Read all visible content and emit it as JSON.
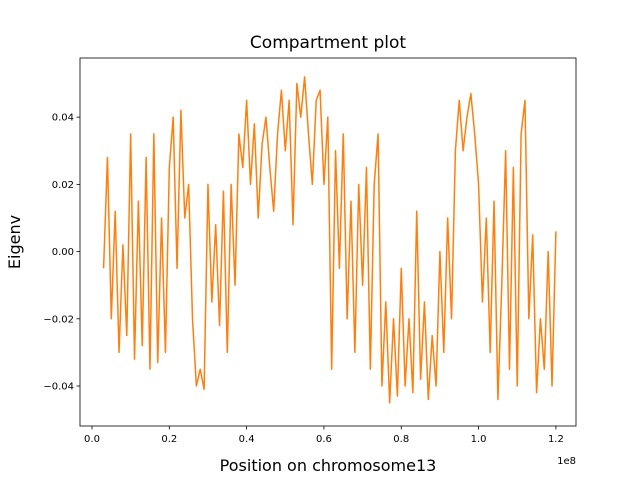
{
  "chart_data": {
    "type": "line",
    "title": "Compartment plot",
    "x_label": "Position on chromosome13",
    "y_label": "Eigenv",
    "x_offset_label": "1e8",
    "x": [
      0.03,
      0.04,
      0.05,
      0.06,
      0.07,
      0.08,
      0.09,
      0.1,
      0.11,
      0.12,
      0.13,
      0.14,
      0.15,
      0.16,
      0.17,
      0.18,
      0.19,
      0.2,
      0.21,
      0.22,
      0.23,
      0.24,
      0.25,
      0.26,
      0.27,
      0.28,
      0.29,
      0.3,
      0.31,
      0.32,
      0.33,
      0.34,
      0.35,
      0.36,
      0.37,
      0.38,
      0.39,
      0.4,
      0.41,
      0.42,
      0.43,
      0.44,
      0.45,
      0.46,
      0.47,
      0.48,
      0.49,
      0.5,
      0.51,
      0.52,
      0.53,
      0.54,
      0.55,
      0.56,
      0.57,
      0.58,
      0.59,
      0.6,
      0.61,
      0.62,
      0.63,
      0.64,
      0.65,
      0.66,
      0.67,
      0.68,
      0.69,
      0.7,
      0.71,
      0.72,
      0.73,
      0.74,
      0.75,
      0.76,
      0.77,
      0.78,
      0.79,
      0.8,
      0.81,
      0.82,
      0.83,
      0.84,
      0.85,
      0.86,
      0.87,
      0.88,
      0.89,
      0.9,
      0.91,
      0.92,
      0.93,
      0.94,
      0.95,
      0.96,
      0.97,
      0.98,
      0.99,
      1.0,
      1.01,
      1.02,
      1.03,
      1.04,
      1.05,
      1.06,
      1.07,
      1.08,
      1.09,
      1.1,
      1.11,
      1.12,
      1.13,
      1.14,
      1.15,
      1.16,
      1.17,
      1.18,
      1.19,
      1.2
    ],
    "series": [
      {
        "color": "#ff7f0e",
        "values": [
          -0.005,
          0.028,
          -0.02,
          0.012,
          -0.03,
          0.002,
          -0.025,
          0.035,
          -0.032,
          0.015,
          -0.028,
          0.028,
          -0.035,
          0.035,
          -0.033,
          0.01,
          -0.03,
          0.025,
          0.04,
          -0.005,
          0.042,
          0.01,
          0.02,
          -0.02,
          -0.04,
          -0.035,
          -0.041,
          0.02,
          -0.015,
          0.008,
          -0.022,
          0.018,
          -0.03,
          0.02,
          -0.01,
          0.035,
          0.025,
          0.045,
          0.02,
          0.038,
          0.01,
          0.032,
          0.04,
          0.025,
          0.012,
          0.035,
          0.048,
          0.03,
          0.045,
          0.008,
          0.05,
          0.04,
          0.052,
          0.035,
          0.02,
          0.045,
          0.048,
          0.02,
          0.04,
          -0.035,
          0.03,
          -0.005,
          0.035,
          -0.02,
          0.015,
          -0.03,
          0.02,
          -0.01,
          0.025,
          -0.035,
          0.02,
          0.035,
          -0.04,
          -0.015,
          -0.045,
          -0.02,
          -0.043,
          -0.005,
          -0.04,
          -0.02,
          -0.042,
          0.012,
          -0.038,
          -0.015,
          -0.044,
          -0.025,
          -0.04,
          0.0,
          -0.03,
          0.01,
          -0.02,
          0.03,
          0.045,
          0.03,
          0.04,
          0.047,
          0.035,
          0.02,
          -0.015,
          0.01,
          -0.03,
          0.015,
          -0.044,
          -0.01,
          0.03,
          -0.035,
          0.025,
          -0.04,
          0.035,
          0.045,
          -0.02,
          0.005,
          -0.042,
          -0.02,
          -0.035,
          0.0,
          -0.04,
          0.006
        ]
      }
    ],
    "xlim": [
      -0.031,
      1.252
    ],
    "xticks": [
      {
        "value": 0.0,
        "label": "0.0"
      },
      0.2,
      0.4,
      0.6,
      0.8,
      {
        "value": 1.0,
        "label": "1.0"
      },
      1.2
    ],
    "ylim": [
      -0.0519,
      0.0576
    ],
    "yticks": [
      {
        "value": -0.04,
        "label": "−0.04"
      },
      {
        "value": -0.02,
        "label": "−0.02"
      },
      {
        "value": 0.0,
        "label": "0.00"
      },
      0.02,
      0.04
    ],
    "grid": false
  }
}
